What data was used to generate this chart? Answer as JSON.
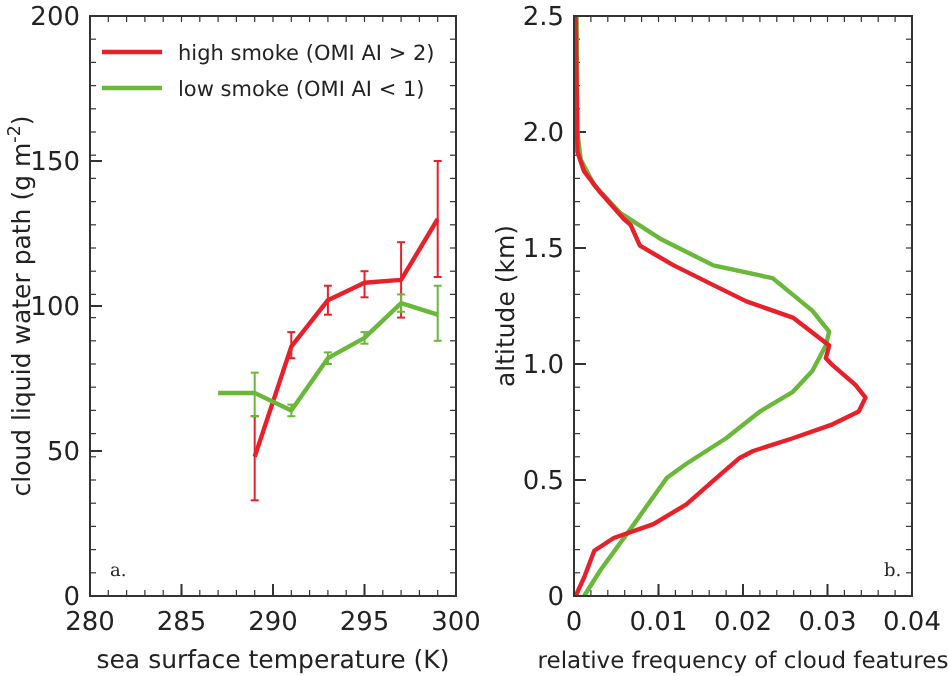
{
  "chart_data": [
    {
      "type": "line",
      "xlabel": "sea surface temperature (K)",
      "ylabel": "cloud liquid water path (g m$^{-2}$)",
      "xlim": [
        280,
        300
      ],
      "xticks": [
        280,
        285,
        290,
        295,
        300
      ],
      "ylim": [
        0,
        200
      ],
      "yticks": [
        0,
        50,
        100,
        150,
        200
      ],
      "grid": false,
      "legend": "top left",
      "marker": "none",
      "line_style": "solid",
      "annotations": [
        "a."
      ],
      "series": [
        {
          "name": "high smoke (OMI AI > 2)",
          "color": "#e8202a",
          "x": [
            289,
            291,
            293,
            295,
            297,
            299
          ],
          "values": [
            48,
            86,
            102,
            108,
            109,
            130
          ],
          "errors": [
            [
              33,
              62
            ],
            [
              82,
              91
            ],
            [
              97,
              107
            ],
            [
              103,
              112
            ],
            [
              96,
              122
            ],
            [
              110,
              150
            ]
          ]
        },
        {
          "name": "low smoke (OMI AI < 1)",
          "color": "#6ab83a",
          "x": [
            287,
            289,
            291,
            293,
            295,
            297,
            299
          ],
          "values": [
            70,
            70,
            64,
            82,
            89,
            101,
            97
          ],
          "errors": [
            null,
            [
              62,
              77
            ],
            [
              62,
              66
            ],
            [
              80,
              84
            ],
            [
              87,
              91
            ],
            [
              98,
              104
            ],
            [
              88,
              107
            ]
          ]
        }
      ]
    },
    {
      "type": "line",
      "orientation": "horizontal",
      "xlabel": "relative frequency of cloud features",
      "ylabel": "altitude (km)",
      "xlim": [
        0,
        0.04
      ],
      "xticks": [
        0,
        0.01,
        0.02,
        0.03,
        0.04
      ],
      "ylim": [
        0,
        2.5
      ],
      "yticks": [
        {
          "value": 0,
          "label": "0"
        },
        {
          "value": 0.5,
          "label": "0.5"
        },
        {
          "value": 1,
          "label": "1.0"
        },
        {
          "value": 1.5,
          "label": "1.5"
        },
        {
          "value": 2,
          "label": "2.0"
        },
        {
          "value": 2.5,
          "label": "2.5"
        }
      ],
      "grid": false,
      "legend": false,
      "marker": "none",
      "line_style": "solid",
      "annotations": [
        "b."
      ],
      "series": [
        {
          "color": "#6ab83a",
          "values": [
            0.0012,
            0.0031,
            0.0071,
            0.011,
            0.0133,
            0.018,
            0.022,
            0.0259,
            0.0282,
            0.0298,
            0.0302,
            0.0282,
            0.0235,
            0.0165,
            0.0102,
            0.0055,
            0.0024,
            0.0008,
            0.0004,
            0.0003
          ],
          "x": [
            0,
            0.11,
            0.31,
            0.51,
            0.57,
            0.68,
            0.795,
            0.88,
            0.97,
            1.08,
            1.14,
            1.23,
            1.37,
            1.425,
            1.54,
            1.65,
            1.77,
            1.88,
            2.0,
            2.5
          ]
        },
        {
          "color": "#e8202a",
          "values": [
            0.0002,
            0.0012,
            0.0024,
            0.0047,
            0.0094,
            0.0133,
            0.0169,
            0.0196,
            0.0212,
            0.0259,
            0.0306,
            0.0337,
            0.0345,
            0.0333,
            0.0306,
            0.0298,
            0.0302,
            0.0259,
            0.0204,
            0.0165,
            0.0118,
            0.0078,
            0.0067,
            0.0059,
            0.0031,
            0.0012,
            0.0004,
            0.0002
          ],
          "x": [
            0,
            0.08,
            0.195,
            0.25,
            0.31,
            0.395,
            0.51,
            0.595,
            0.625,
            0.68,
            0.74,
            0.795,
            0.855,
            0.91,
            0.995,
            1.025,
            1.08,
            1.2,
            1.27,
            1.34,
            1.425,
            1.51,
            1.6,
            1.625,
            1.74,
            1.83,
            1.915,
            2.5
          ]
        }
      ]
    }
  ]
}
